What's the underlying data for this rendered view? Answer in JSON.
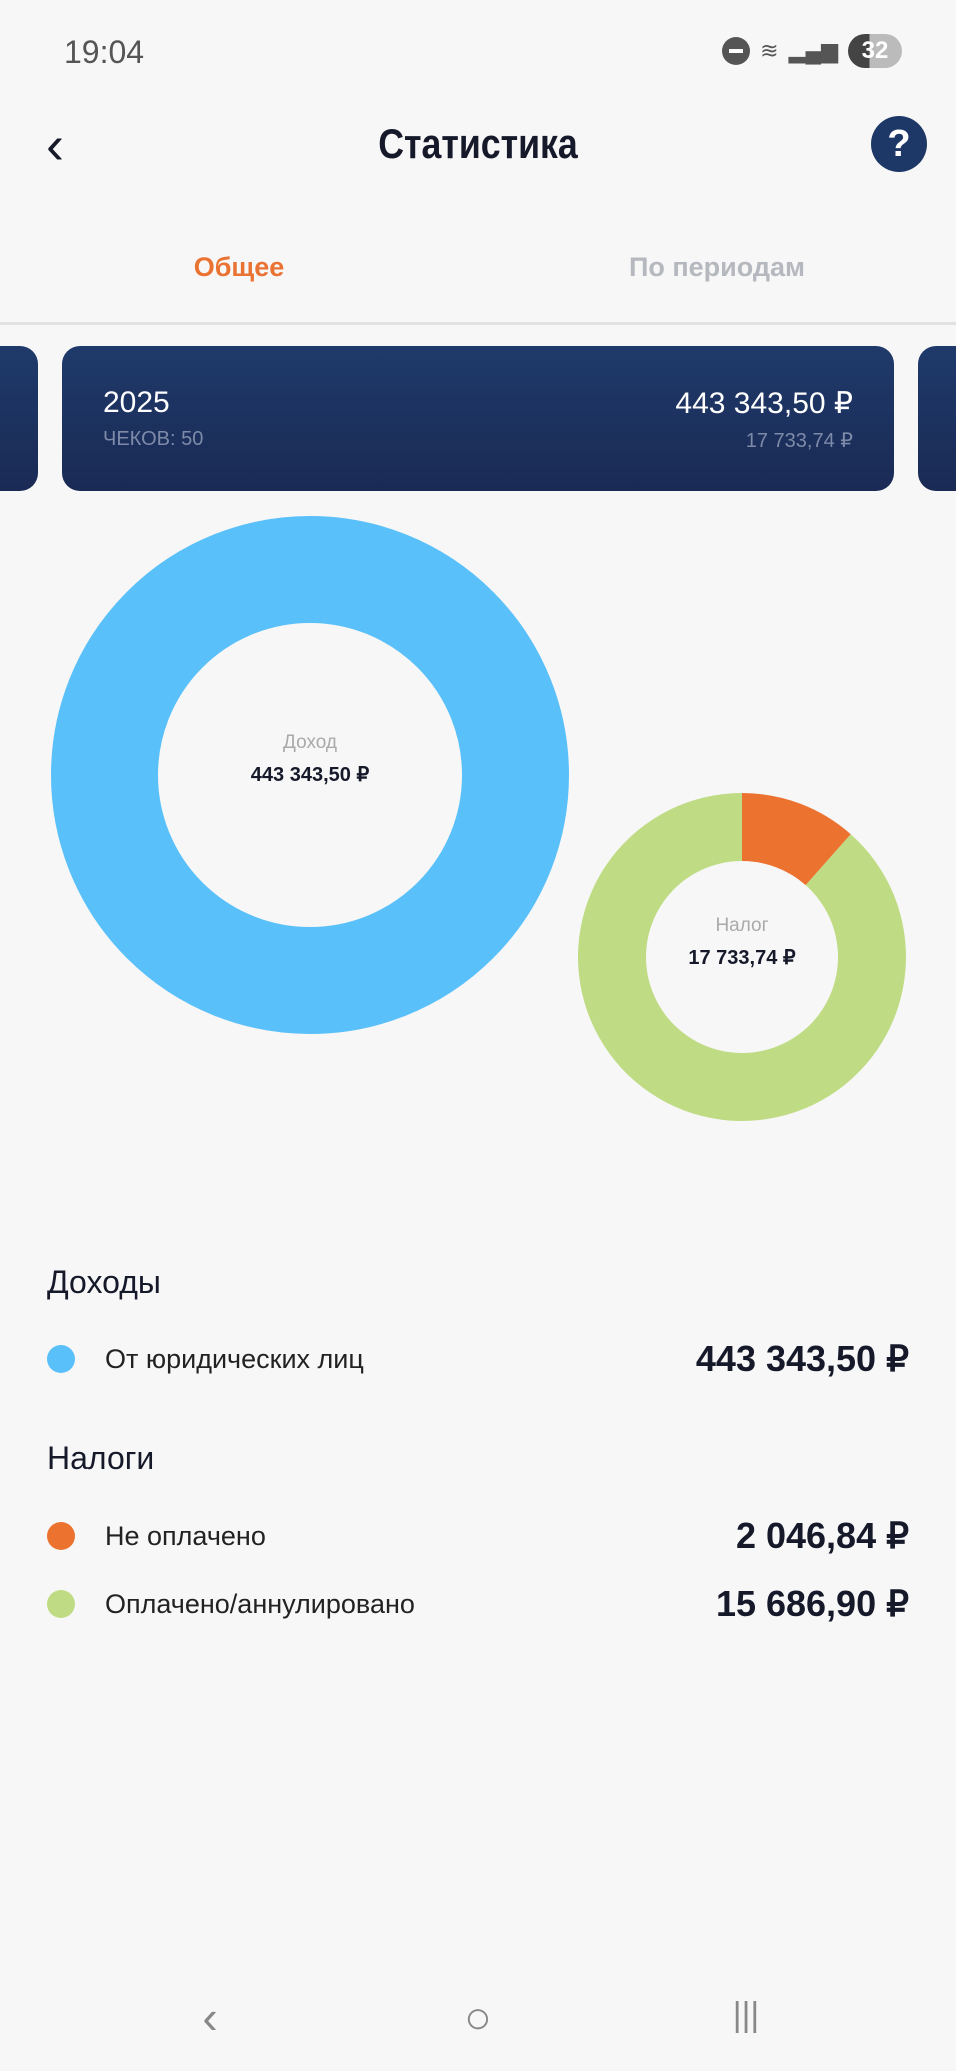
{
  "status": {
    "time": "19:04",
    "battery": "32",
    "wifi_label": "5"
  },
  "header": {
    "back": "‹",
    "title": "Статистика",
    "help": "?"
  },
  "tabs": [
    {
      "label": "Общее",
      "active": true
    },
    {
      "label": "По периодам",
      "active": false
    }
  ],
  "card": {
    "year": "2025",
    "checks": "ЧЕКОВ: 50",
    "income": "443 343,50 ₽",
    "tax": "17 733,74 ₽"
  },
  "income_donut": {
    "label": "Доход",
    "value": "443 343,50 ₽"
  },
  "tax_donut": {
    "label": "Налог",
    "value": "17 733,74 ₽"
  },
  "chart_data": [
    {
      "type": "pie",
      "title": "Доход",
      "categories": [
        "От юридических лиц"
      ],
      "values": [
        443343.5
      ],
      "colors": [
        "#5ac0fa"
      ]
    },
    {
      "type": "pie",
      "title": "Налог",
      "categories": [
        "Не оплачено",
        "Оплачено/аннулировано"
      ],
      "values": [
        2046.84,
        15686.9
      ],
      "colors": [
        "#ec7230",
        "#bfdc84"
      ]
    }
  ],
  "income_section": {
    "title": "Доходы",
    "items": [
      {
        "label": "От юридических лиц",
        "amount": "443 343,50 ₽",
        "color": "#5ac0fa"
      }
    ]
  },
  "tax_section": {
    "title": "Налоги",
    "items": [
      {
        "label": "Не оплачено",
        "amount": "2 046,84 ₽",
        "color": "#ec7230"
      },
      {
        "label": "Оплачено/аннулировано",
        "amount": "15 686,90 ₽",
        "color": "#bfdc84"
      }
    ]
  },
  "navbar": {
    "back": "‹",
    "home": "○",
    "recents": "|||"
  }
}
